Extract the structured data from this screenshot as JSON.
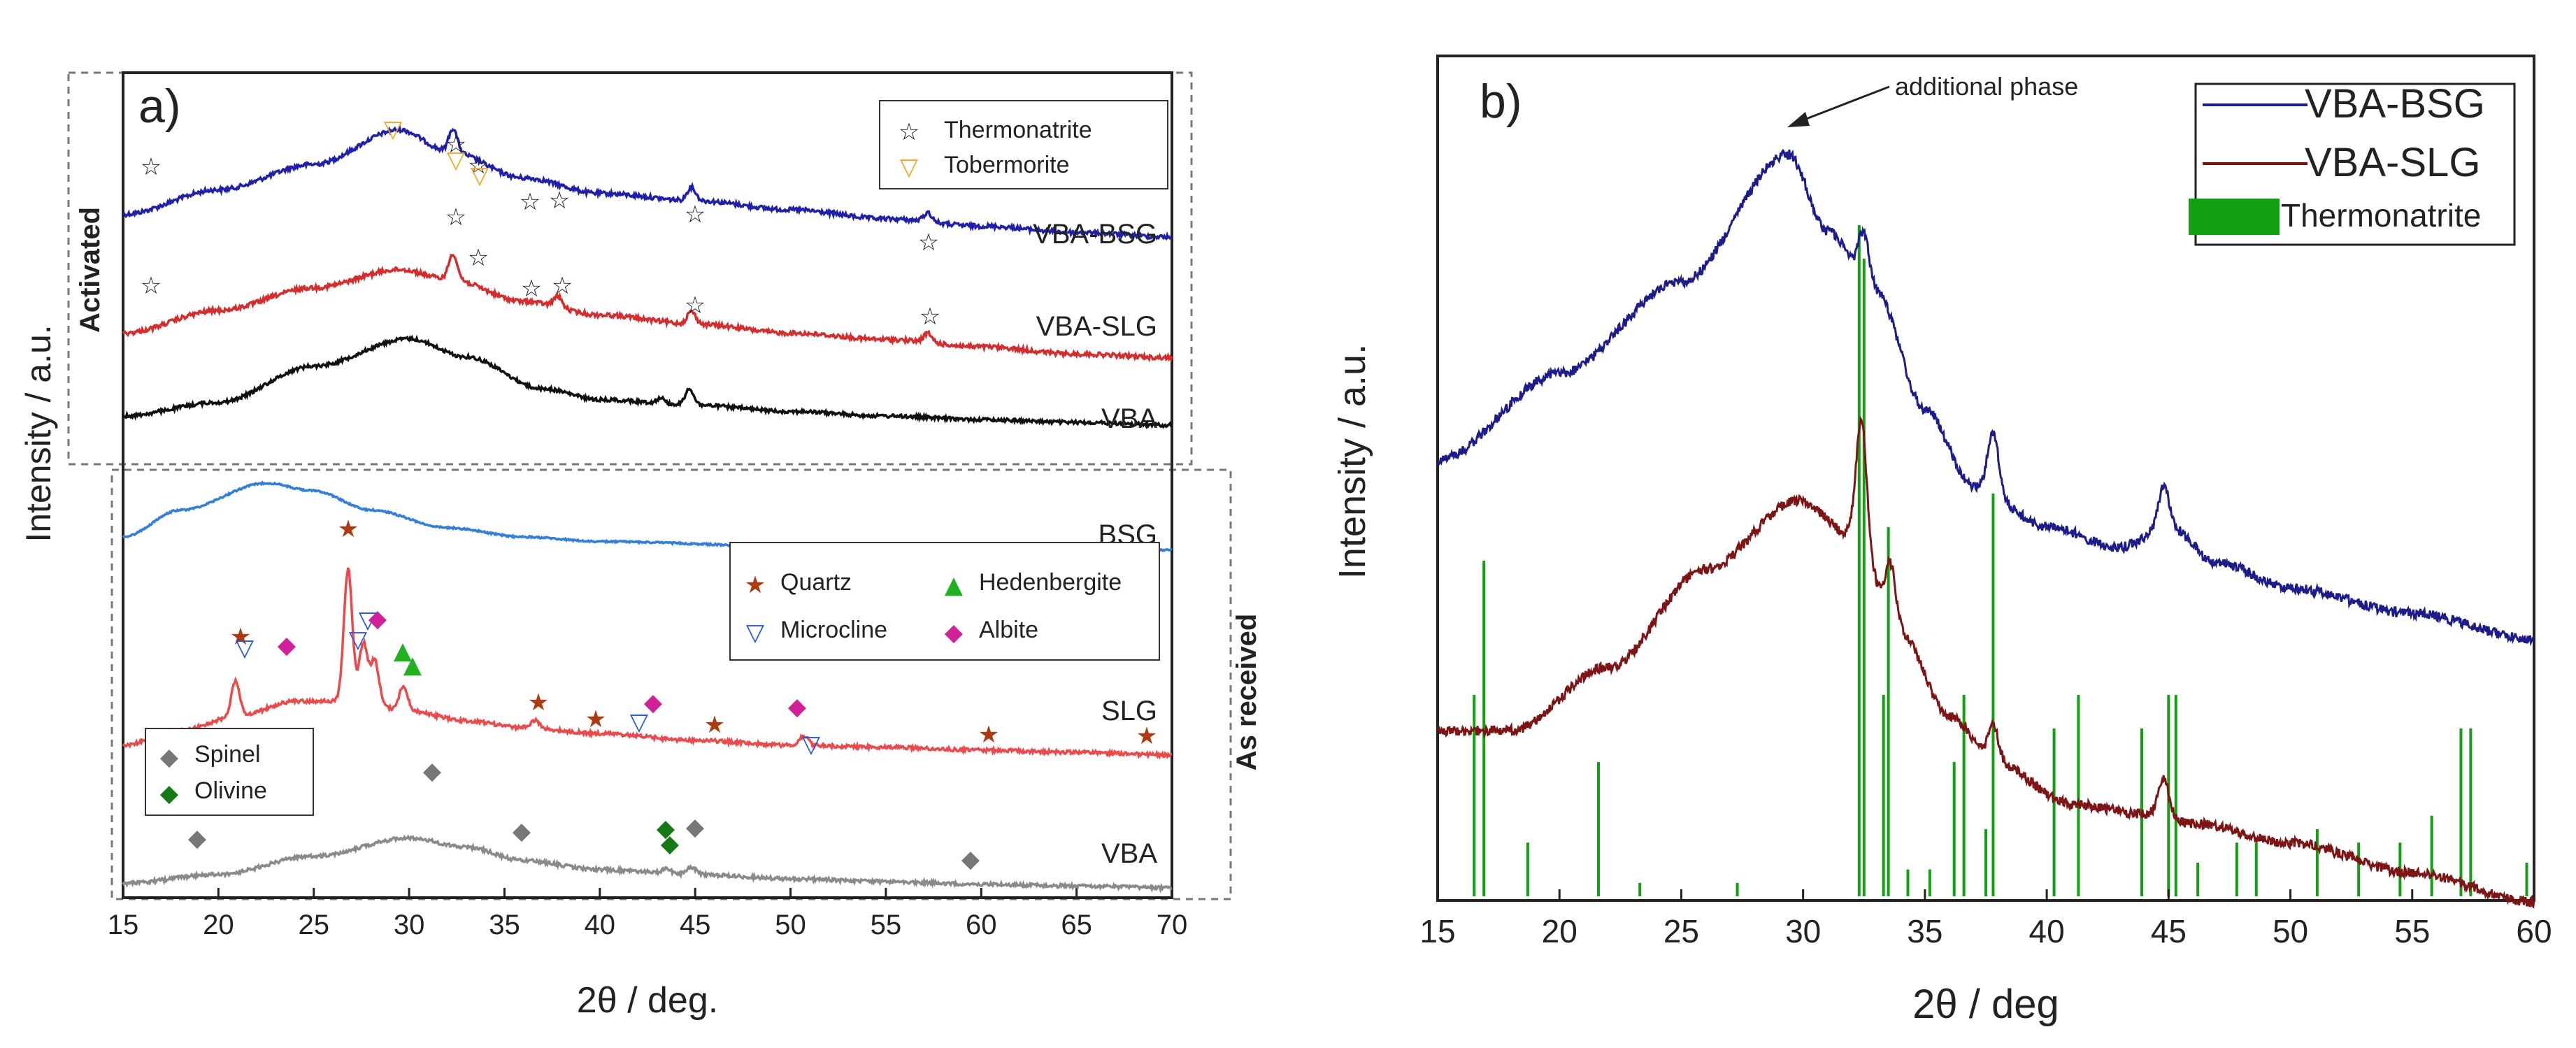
{
  "chart_data": [
    {
      "type": "line",
      "panel": "a)",
      "xlabel": "2θ / deg.",
      "ylabel": "Intensity / a.u.",
      "xlim": [
        15,
        70
      ],
      "xticks": [
        "15",
        "20",
        "25",
        "30",
        "35",
        "40",
        "45",
        "50",
        "55",
        "60",
        "65",
        "70"
      ],
      "regions": [
        "Activated",
        "As received"
      ],
      "series": [
        {
          "name": "VBA-BSG",
          "color": "#1f1fb0",
          "points": [
            [
              15,
              0.35
            ],
            [
              20,
              0.62
            ],
            [
              25,
              0.9
            ],
            [
              29.5,
              1.28
            ],
            [
              32,
              1.05
            ],
            [
              36,
              0.75
            ],
            [
              40,
              0.58
            ],
            [
              45,
              0.5
            ],
            [
              50,
              0.4
            ],
            [
              55,
              0.3
            ],
            [
              60,
              0.22
            ],
            [
              65,
              0.15
            ],
            [
              70,
              0.1
            ]
          ],
          "peaks": [
            [
              32.3,
              0.25
            ],
            [
              44.8,
              0.15
            ],
            [
              57.2,
              0.1
            ]
          ]
        },
        {
          "name": "VBA-SLG",
          "color": "#d92b2b",
          "points": [
            [
              15,
              0.35
            ],
            [
              20,
              0.6
            ],
            [
              25,
              0.85
            ],
            [
              29.5,
              1.05
            ],
            [
              32,
              0.95
            ],
            [
              36,
              0.7
            ],
            [
              40,
              0.55
            ],
            [
              45,
              0.45
            ],
            [
              50,
              0.35
            ],
            [
              55,
              0.28
            ],
            [
              60,
              0.2
            ],
            [
              65,
              0.12
            ],
            [
              70,
              0.08
            ]
          ],
          "peaks": [
            [
              32.3,
              0.28
            ],
            [
              37.8,
              0.12
            ],
            [
              44.8,
              0.14
            ],
            [
              57.2,
              0.1
            ]
          ]
        },
        {
          "name": "VBA",
          "color": "#111111",
          "points": [
            [
              15,
              0.1
            ],
            [
              20,
              0.25
            ],
            [
              25,
              0.65
            ],
            [
              30,
              0.95
            ],
            [
              33,
              0.75
            ],
            [
              37,
              0.4
            ],
            [
              40,
              0.28
            ],
            [
              45,
              0.22
            ],
            [
              50,
              0.15
            ],
            [
              55,
              0.1
            ],
            [
              60,
              0.06
            ],
            [
              65,
              0.03
            ],
            [
              70,
              0.0
            ]
          ],
          "peaks": [
            [
              44.7,
              0.18
            ],
            [
              43.2,
              0.06
            ]
          ]
        },
        {
          "name": "BSG",
          "color": "#2f7fe0",
          "points": [
            [
              15,
              0.2
            ],
            [
              18,
              0.55
            ],
            [
              22.5,
              0.9
            ],
            [
              25,
              0.8
            ],
            [
              28,
              0.55
            ],
            [
              32,
              0.32
            ],
            [
              36,
              0.2
            ],
            [
              40,
              0.14
            ],
            [
              50,
              0.08
            ],
            [
              60,
              0.05
            ],
            [
              70,
              0.03
            ]
          ],
          "peaks": []
        },
        {
          "name": "SLG",
          "color": "#f04848",
          "points": [
            [
              15,
              0.1
            ],
            [
              18,
              0.25
            ],
            [
              21,
              0.4
            ],
            [
              24,
              0.55
            ],
            [
              27,
              0.55
            ],
            [
              30,
              0.45
            ],
            [
              33,
              0.35
            ],
            [
              36,
              0.28
            ],
            [
              40,
              0.22
            ],
            [
              45,
              0.15
            ],
            [
              50,
              0.1
            ],
            [
              55,
              0.08
            ],
            [
              60,
              0.05
            ],
            [
              65,
              0.03
            ],
            [
              70,
              0.0
            ]
          ],
          "peaks": [
            [
              20.9,
              0.35
            ],
            [
              26.8,
              1.35
            ],
            [
              27.6,
              0.6
            ],
            [
              28.2,
              0.45
            ],
            [
              29.7,
              0.25
            ],
            [
              36.6,
              0.08
            ],
            [
              50.7,
              0.1
            ]
          ]
        },
        {
          "name": "VBA",
          "color": "#8a8a8a",
          "points": [
            [
              15,
              0.05
            ],
            [
              20,
              0.15
            ],
            [
              25,
              0.35
            ],
            [
              30,
              0.55
            ],
            [
              33,
              0.45
            ],
            [
              36,
              0.3
            ],
            [
              40,
              0.2
            ],
            [
              45,
              0.15
            ],
            [
              50,
              0.1
            ],
            [
              55,
              0.07
            ],
            [
              60,
              0.04
            ],
            [
              65,
              0.02
            ],
            [
              70,
              0.0
            ]
          ],
          "peaks": [
            [
              43.5,
              0.05
            ],
            [
              44.8,
              0.08
            ]
          ]
        }
      ],
      "legend_activated": [
        "Thermonatrite",
        "Tobermorite"
      ],
      "legend_received": [
        "Quartz",
        "Hedenbergite",
        "Microcline",
        "Albite"
      ],
      "legend_vba": [
        "Spinel",
        "Olivine"
      ]
    },
    {
      "type": "line",
      "panel": "b)",
      "xlabel": "2θ / deg",
      "ylabel": "Intensity / a.u.",
      "xlim": [
        15,
        60
      ],
      "xticks": [
        "15",
        "20",
        "25",
        "30",
        "35",
        "40",
        "45",
        "50",
        "55",
        "60"
      ],
      "annotation": "additional phase",
      "series": [
        {
          "name": "VBA-BSG",
          "color": "#1c1c8c",
          "points": [
            [
              15,
              0.55
            ],
            [
              20,
              0.72
            ],
            [
              25,
              0.9
            ],
            [
              29.4,
              1.15
            ],
            [
              31,
              1.0
            ],
            [
              33,
              0.88
            ],
            [
              35,
              0.65
            ],
            [
              37,
              0.5
            ],
            [
              40,
              0.42
            ],
            [
              43,
              0.38
            ],
            [
              45,
              0.42
            ],
            [
              47,
              0.35
            ],
            [
              50,
              0.3
            ],
            [
              55,
              0.25
            ],
            [
              60,
              0.2
            ]
          ],
          "peaks": [
            [
              32.5,
              0.1
            ],
            [
              37.8,
              0.12
            ],
            [
              44.8,
              0.08
            ]
          ]
        },
        {
          "name": "VBA-SLG",
          "color": "#7e1414",
          "points": [
            [
              15,
              0.45
            ],
            [
              18,
              0.45
            ],
            [
              22,
              0.58
            ],
            [
              26,
              0.78
            ],
            [
              29.8,
              0.92
            ],
            [
              32,
              0.85
            ],
            [
              34,
              0.65
            ],
            [
              36,
              0.48
            ],
            [
              38,
              0.38
            ],
            [
              41,
              0.3
            ],
            [
              44,
              0.28
            ],
            [
              46,
              0.26
            ],
            [
              50,
              0.22
            ],
            [
              55,
              0.16
            ],
            [
              60,
              0.1
            ]
          ],
          "peaks": [
            [
              32.4,
              0.25
            ],
            [
              33.6,
              0.12
            ],
            [
              37.8,
              0.08
            ],
            [
              44.8,
              0.08
            ]
          ]
        }
      ],
      "reference": {
        "name": "Thermonatrite",
        "color": "#12a012",
        "lines": [
          [
            16.5,
            0.3
          ],
          [
            16.9,
            0.5
          ],
          [
            18.7,
            0.08
          ],
          [
            21.6,
            0.2
          ],
          [
            23.3,
            0.02
          ],
          [
            27.3,
            0.02
          ],
          [
            32.3,
            1.0
          ],
          [
            32.5,
            0.95
          ],
          [
            33.3,
            0.3
          ],
          [
            33.5,
            0.55
          ],
          [
            34.3,
            0.04
          ],
          [
            35.2,
            0.04
          ],
          [
            36.2,
            0.2
          ],
          [
            36.6,
            0.3
          ],
          [
            37.5,
            0.1
          ],
          [
            37.8,
            0.6
          ],
          [
            40.3,
            0.25
          ],
          [
            41.3,
            0.3
          ],
          [
            43.9,
            0.25
          ],
          [
            45.0,
            0.3
          ],
          [
            45.3,
            0.3
          ],
          [
            46.2,
            0.05
          ],
          [
            47.8,
            0.08
          ],
          [
            48.6,
            0.08
          ],
          [
            51.1,
            0.1
          ],
          [
            52.8,
            0.08
          ],
          [
            54.5,
            0.08
          ],
          [
            55.8,
            0.12
          ],
          [
            57.0,
            0.25
          ],
          [
            57.4,
            0.25
          ],
          [
            59.7,
            0.05
          ]
        ]
      }
    }
  ]
}
